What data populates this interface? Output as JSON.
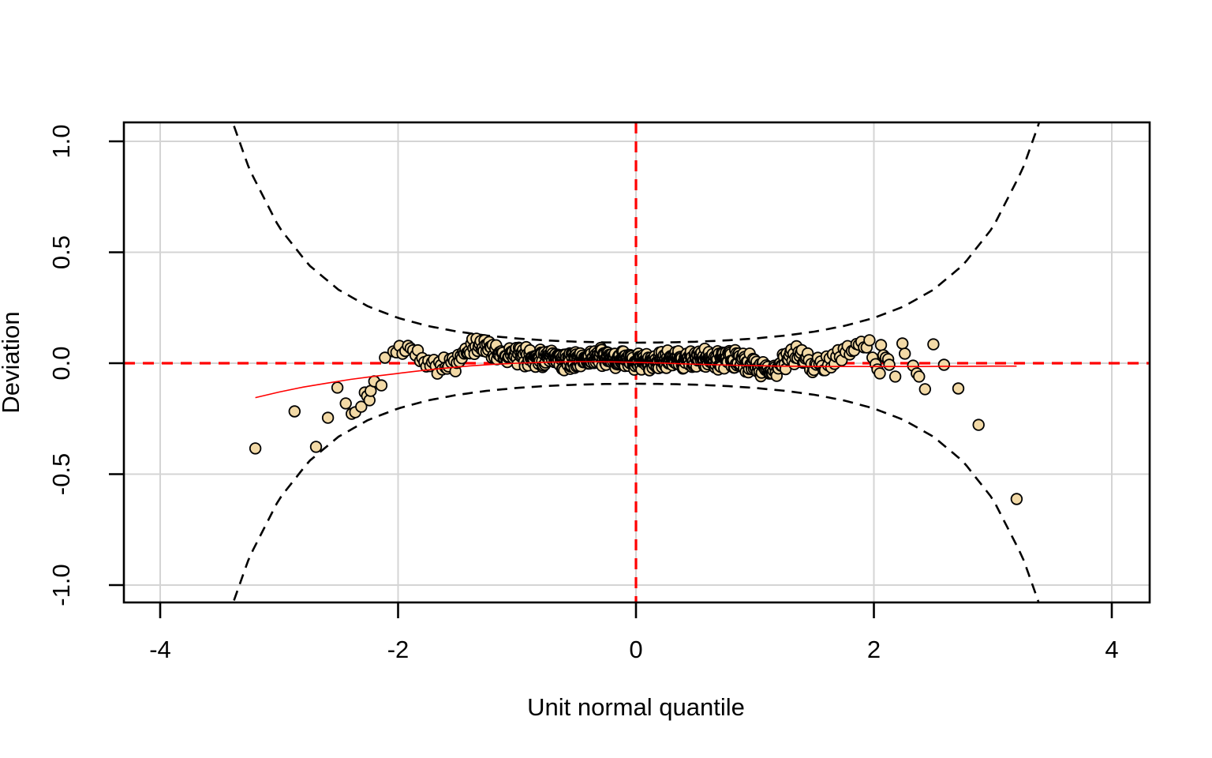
{
  "chart_data": {
    "type": "scatter",
    "title": "",
    "xlabel": "Unit normal quantile",
    "ylabel": "Deviation",
    "xlim": [
      -4.31,
      4.32
    ],
    "ylim": [
      -1.08,
      1.085
    ],
    "x_ticks": [
      -4,
      -2,
      0,
      2,
      4
    ],
    "x_tick_labels": [
      "-4",
      "-2",
      "0",
      "2",
      "4"
    ],
    "y_ticks": [
      -1.0,
      -0.5,
      0.0,
      0.5,
      1.0
    ],
    "y_tick_labels": [
      "-1.0",
      "-0.5",
      "0.0",
      "0.5",
      "1.0"
    ],
    "grid": true,
    "legend": "none",
    "styles": {
      "point_fill": "#F2D9A6",
      "point_stroke": "#000000",
      "envelope_color": "#000000",
      "reference_color": "#FF0000",
      "fit_color": "#FF0000",
      "grid_color": "#D4D4D4",
      "frame_color": "#000000",
      "text_color": "#000000"
    },
    "reference_lines": {
      "horizontal_y": 0,
      "vertical_x": 0,
      "style": "dashed"
    },
    "envelope": {
      "kind": "pointwise 95% confidence band, dashed, symmetric about 0",
      "n": 705,
      "level": 1.96,
      "half_width_knots": [
        [
          0.0,
          0.0925
        ],
        [
          0.25,
          0.0936
        ],
        [
          0.5,
          0.0968
        ],
        [
          0.75,
          0.1026
        ],
        [
          1.0,
          0.1115
        ],
        [
          1.25,
          0.1242
        ],
        [
          1.5,
          0.1423
        ],
        [
          1.75,
          0.1678
        ],
        [
          2.0,
          0.2039
        ],
        [
          2.25,
          0.2555
        ],
        [
          2.5,
          0.3308
        ],
        [
          2.75,
          0.4425
        ],
        [
          3.0,
          0.6116
        ],
        [
          3.25,
          0.8737
        ],
        [
          3.4,
          1.0996
        ],
        [
          3.5,
          1.29
        ],
        [
          3.6,
          1.52
        ]
      ]
    },
    "fit_curve": {
      "kind": "loess fit, thin solid red",
      "points": [
        [
          -3.2,
          -0.155
        ],
        [
          -3.0,
          -0.13
        ],
        [
          -2.8,
          -0.108
        ],
        [
          -2.6,
          -0.09
        ],
        [
          -2.4,
          -0.073
        ],
        [
          -2.2,
          -0.059
        ],
        [
          -2.0,
          -0.046
        ],
        [
          -1.8,
          -0.033
        ],
        [
          -1.6,
          -0.022
        ],
        [
          -1.4,
          -0.012
        ],
        [
          -1.2,
          -0.005
        ],
        [
          -1.0,
          0.0
        ],
        [
          -0.8,
          0.004
        ],
        [
          -0.6,
          0.006
        ],
        [
          -0.4,
          0.007
        ],
        [
          -0.2,
          0.006
        ],
        [
          0.0,
          0.004
        ],
        [
          0.2,
          0.001
        ],
        [
          0.4,
          -0.003
        ],
        [
          0.6,
          -0.006
        ],
        [
          0.8,
          -0.009
        ],
        [
          1.0,
          -0.011
        ],
        [
          1.2,
          -0.013
        ],
        [
          1.4,
          -0.014
        ],
        [
          1.6,
          -0.015
        ],
        [
          1.8,
          -0.015
        ],
        [
          2.0,
          -0.015
        ],
        [
          2.2,
          -0.015
        ],
        [
          2.4,
          -0.015
        ],
        [
          2.6,
          -0.014
        ],
        [
          2.8,
          -0.014
        ],
        [
          3.0,
          -0.013
        ],
        [
          3.2,
          -0.013
        ]
      ]
    },
    "tail_points": [
      [
        -3.2,
        -0.384
      ],
      [
        -2.87,
        -0.217
      ],
      [
        -2.69,
        -0.377
      ],
      [
        -2.59,
        -0.246
      ],
      [
        -2.51,
        -0.11
      ],
      [
        -2.44,
        -0.181
      ],
      [
        -2.39,
        -0.228
      ],
      [
        -2.36,
        -0.221
      ],
      [
        -2.31,
        -0.196
      ],
      [
        -2.28,
        -0.132
      ],
      [
        -2.26,
        -0.148
      ],
      [
        -2.24,
        -0.167
      ],
      [
        -2.23,
        -0.125
      ],
      [
        -2.2,
        -0.082
      ],
      [
        -2.14,
        -0.1
      ],
      [
        -2.11,
        0.025
      ],
      [
        -2.04,
        0.053
      ],
      [
        2.03,
        -0.028
      ],
      [
        2.05,
        -0.046
      ],
      [
        2.06,
        0.082
      ],
      [
        2.08,
        0.036
      ],
      [
        2.1,
        0.025
      ],
      [
        2.12,
        0.018
      ],
      [
        2.13,
        -0.007
      ],
      [
        2.18,
        -0.06
      ],
      [
        2.24,
        0.089
      ],
      [
        2.26,
        0.043
      ],
      [
        2.33,
        -0.011
      ],
      [
        2.36,
        -0.046
      ],
      [
        2.38,
        -0.06
      ],
      [
        2.43,
        -0.117
      ],
      [
        2.5,
        0.085
      ],
      [
        2.59,
        -0.007
      ],
      [
        2.71,
        -0.114
      ],
      [
        2.88,
        -0.278
      ],
      [
        3.2,
        -0.612
      ]
    ],
    "dense_band": {
      "kind": "order-statistic cloud, quantiles of n points between z_range, deviation = backbone + jitter",
      "n": 705,
      "z_range": [
        -2.02,
        2.02
      ],
      "spread_factor": 0.5,
      "spread_cap": 0.05,
      "seed": 42,
      "backbone": [
        [
          -2.02,
          0.045
        ],
        [
          -1.95,
          0.06
        ],
        [
          -1.9,
          0.062
        ],
        [
          -1.85,
          0.05
        ],
        [
          -1.8,
          0.03
        ],
        [
          -1.75,
          0.015
        ],
        [
          -1.7,
          0.0
        ],
        [
          -1.6,
          -0.005
        ],
        [
          -1.5,
          0.01
        ],
        [
          -1.45,
          0.035
        ],
        [
          -1.4,
          0.055
        ],
        [
          -1.35,
          0.075
        ],
        [
          -1.3,
          0.08
        ],
        [
          -1.25,
          0.075
        ],
        [
          -1.2,
          0.06
        ],
        [
          -1.15,
          0.045
        ],
        [
          -1.1,
          0.038
        ],
        [
          -1.0,
          0.033
        ],
        [
          -0.9,
          0.03
        ],
        [
          -0.8,
          0.025
        ],
        [
          -0.7,
          0.018
        ],
        [
          -0.6,
          0.012
        ],
        [
          -0.5,
          0.018
        ],
        [
          -0.4,
          0.02
        ],
        [
          -0.3,
          0.024
        ],
        [
          -0.2,
          0.02
        ],
        [
          -0.1,
          0.012
        ],
        [
          0.0,
          0.01
        ],
        [
          0.1,
          0.006
        ],
        [
          0.2,
          0.01
        ],
        [
          0.3,
          0.018
        ],
        [
          0.4,
          0.012
        ],
        [
          0.5,
          0.018
        ],
        [
          0.6,
          0.02
        ],
        [
          0.7,
          0.012
        ],
        [
          0.8,
          0.015
        ],
        [
          0.9,
          0.01
        ],
        [
          1.0,
          -0.005
        ],
        [
          1.1,
          -0.028
        ],
        [
          1.2,
          -0.022
        ],
        [
          1.3,
          0.03
        ],
        [
          1.35,
          0.042
        ],
        [
          1.4,
          0.028
        ],
        [
          1.5,
          0.0
        ],
        [
          1.6,
          0.008
        ],
        [
          1.7,
          0.03
        ],
        [
          1.8,
          0.055
        ],
        [
          1.9,
          0.085
        ],
        [
          1.95,
          0.075
        ],
        [
          2.02,
          0.03
        ]
      ]
    },
    "point_style": {
      "radius_px": 6.8,
      "stroke_width_px": 1.8
    }
  }
}
